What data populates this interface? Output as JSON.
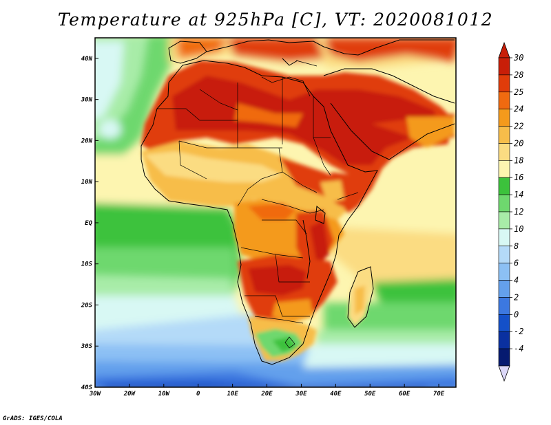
{
  "title": "Temperature at 925hPa [C], VT: 2020081012",
  "credit": "GrADS: IGES/COLA",
  "map": {
    "lon_range": [
      -30,
      75
    ],
    "lat_range": [
      -40,
      45
    ],
    "x_ticks": [
      "30W",
      "20W",
      "10W",
      "0",
      "10E",
      "20E",
      "30E",
      "40E",
      "50E",
      "60E",
      "70E"
    ],
    "y_ticks": [
      "40N",
      "30N",
      "20N",
      "10N",
      "EQ",
      "10S",
      "20S",
      "30S",
      "40S"
    ],
    "x_tick_values": [
      -30,
      -20,
      -10,
      0,
      10,
      20,
      30,
      40,
      50,
      60,
      70
    ],
    "y_tick_values": [
      40,
      30,
      20,
      10,
      0,
      -10,
      -20,
      -30,
      -40
    ]
  },
  "colorbar": {
    "labels": [
      "30",
      "28",
      "25",
      "24",
      "22",
      "20",
      "18",
      "16",
      "14",
      "12",
      "10",
      "8",
      "6",
      "4",
      "2",
      "0",
      "-2",
      "-4"
    ],
    "colors": [
      "#c81e08",
      "#e03c0a",
      "#f06a10",
      "#f49a1c",
      "#f7bd4a",
      "#fbdc82",
      "#fdf5b0",
      "#3cc23c",
      "#6ed86e",
      "#a8eca8",
      "#d8f8f4",
      "#b4daf8",
      "#8cc0f4",
      "#64a0ec",
      "#3c78e0",
      "#1450c8",
      "#0a30a0",
      "#061a70"
    ],
    "top_color": "#c81e08",
    "bottom_color": "#dcd8f8"
  }
}
